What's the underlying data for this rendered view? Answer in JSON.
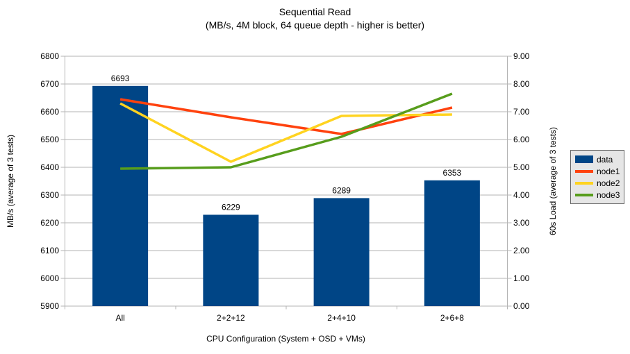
{
  "chart_data": {
    "type": "combo-bar-line",
    "title": "Sequential Read",
    "subtitle": "(MB/s, 4M block, 64 queue depth - higher is better)",
    "categories": [
      "All",
      "2+2+12",
      "2+4+10",
      "2+6+8"
    ],
    "series": [
      {
        "name": "data",
        "type": "bar",
        "axis": "left",
        "color": "#004586",
        "values": [
          6693,
          6229,
          6289,
          6353
        ]
      },
      {
        "name": "node1",
        "type": "line",
        "axis": "right",
        "color": "#ff420e",
        "values": [
          7.45,
          6.8,
          6.2,
          7.15
        ]
      },
      {
        "name": "node2",
        "type": "line",
        "axis": "right",
        "color": "#ffd320",
        "values": [
          7.3,
          5.2,
          6.85,
          6.9
        ]
      },
      {
        "name": "node3",
        "type": "line",
        "axis": "right",
        "color": "#579d1c",
        "values": [
          4.95,
          5.0,
          6.1,
          7.65
        ]
      }
    ],
    "left_axis": {
      "label": "MB/s (average of 3 tests)",
      "min": 5900,
      "max": 6800,
      "step": 100
    },
    "right_axis": {
      "label": "60s Load (average of 3 tests)",
      "min": 0,
      "max": 9,
      "step": 1,
      "decimals": 2
    },
    "xlabel": "CPU Configuration (System + OSD + VMs)",
    "legend": {
      "position": "right",
      "entries": [
        "data",
        "node1",
        "node2",
        "node3"
      ]
    },
    "grid": "horizontal",
    "bar_labels_shown": true,
    "colors": {
      "background": "#ffffff",
      "grid": "#b3b3b3",
      "axis": "#b3b3b3",
      "text": "#000000",
      "legend_bg": "#e6e6e6",
      "legend_border": "#666666"
    }
  }
}
